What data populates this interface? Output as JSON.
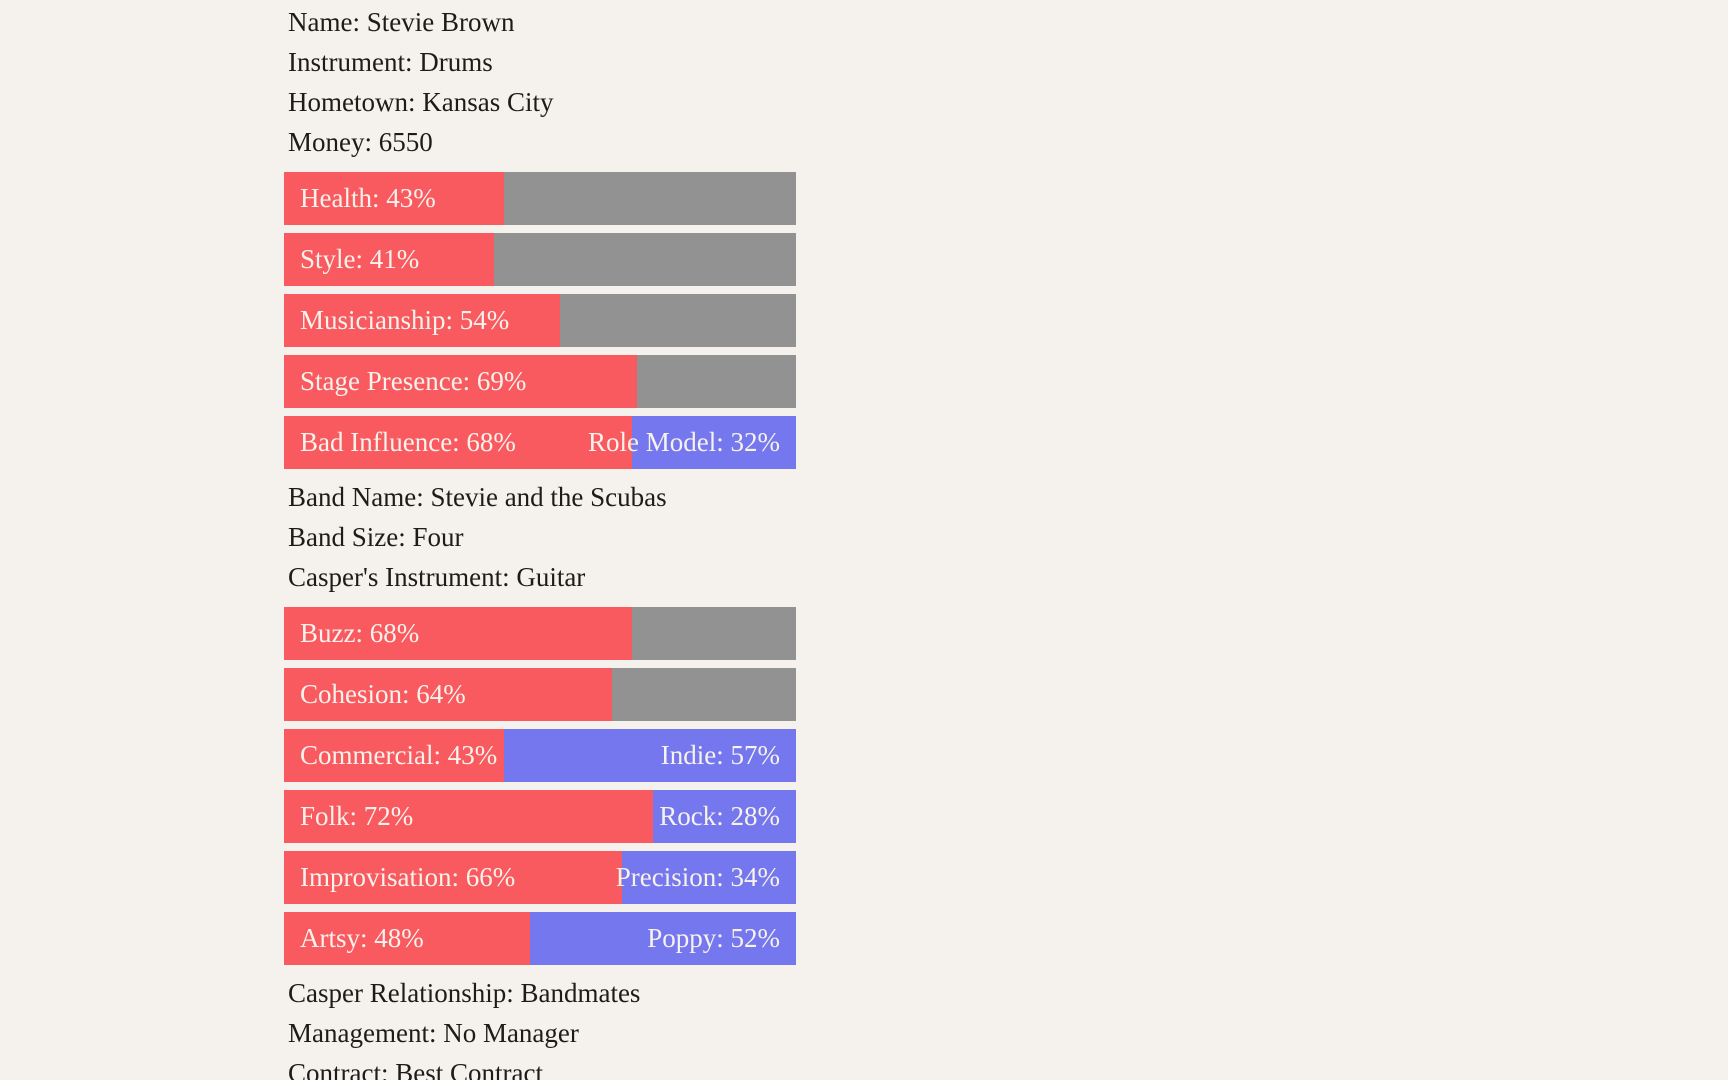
{
  "colors": {
    "background": "#f5f1ec",
    "stat_red": "#f95a5f",
    "stat_blue": "#7477ee",
    "stat_gray": "#929292",
    "body_text": "#1e1c1a",
    "bar_text": "#f7f2ec"
  },
  "musician": {
    "name_line": "Name: Stevie Brown",
    "instrument_line": "Instrument: Drums",
    "hometown_line": "Hometown: Kansas City",
    "money_line": "Money: 6550",
    "stats": [
      {
        "id": "health",
        "label": "Health: 43%",
        "percent": 43,
        "remainder": "gray"
      },
      {
        "id": "style",
        "label": "Style: 41%",
        "percent": 41,
        "remainder": "gray"
      },
      {
        "id": "musicianship",
        "label": "Musicianship: 54%",
        "percent": 54,
        "remainder": "gray"
      },
      {
        "id": "stage-presence",
        "label": "Stage Presence: 69%",
        "percent": 69,
        "remainder": "gray"
      },
      {
        "id": "bad-influence",
        "label": "Bad Influence: 68%",
        "percent": 68,
        "remainder": "blue",
        "right_label": "Role Model: 32%"
      }
    ]
  },
  "band": {
    "name_line": "Band Name: Stevie and the Scubas",
    "size_line": "Band Size: Four",
    "casper_instrument_line": "Casper's Instrument: Guitar",
    "stats": [
      {
        "id": "buzz",
        "label": "Buzz: 68%",
        "percent": 68,
        "remainder": "gray"
      },
      {
        "id": "cohesion",
        "label": "Cohesion: 64%",
        "percent": 64,
        "remainder": "gray"
      },
      {
        "id": "commercial-indie",
        "label": "Commercial: 43%",
        "percent": 43,
        "remainder": "blue",
        "right_label": "Indie: 57%"
      },
      {
        "id": "folk-rock",
        "label": "Folk: 72%",
        "percent": 72,
        "remainder": "blue",
        "right_label": "Rock: 28%"
      },
      {
        "id": "improvisation-precision",
        "label": "Improvisation: 66%",
        "percent": 66,
        "remainder": "blue",
        "right_label": "Precision: 34%"
      },
      {
        "id": "artsy-poppy",
        "label": "Artsy: 48%",
        "percent": 48,
        "remainder": "blue",
        "right_label": "Poppy: 52%"
      }
    ],
    "relationship_line": "Casper Relationship: Bandmates",
    "management_line": "Management: No Manager",
    "contract_line": "Contract: Best Contract"
  }
}
